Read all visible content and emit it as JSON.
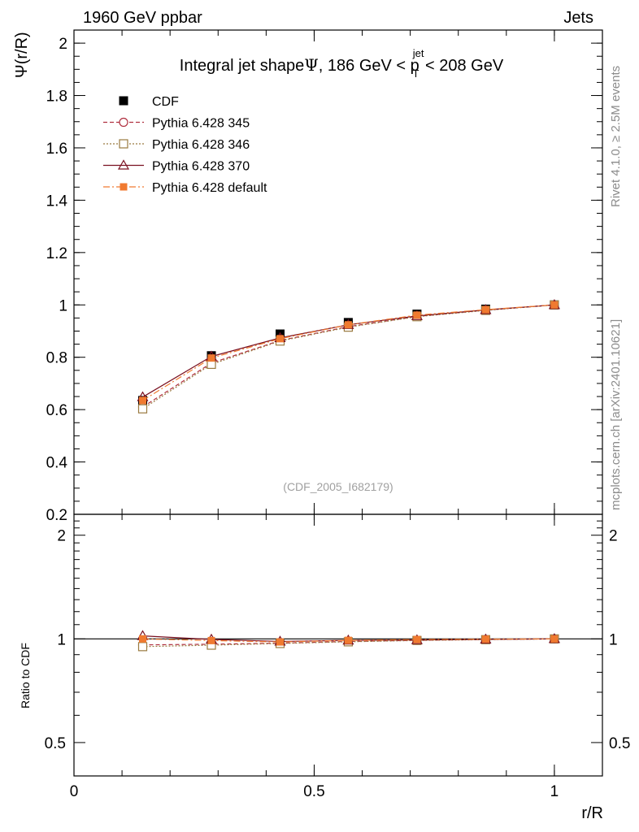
{
  "header": {
    "left": "1960 GeV ppbar",
    "right": "Jets"
  },
  "side_labels": {
    "rivet": "Rivet 4.1.0, ≥ 2.5M events",
    "mcplots": "mcplots.cern.ch [arXiv:2401.10621]"
  },
  "chart_data": {
    "type": "line",
    "title_parts": {
      "prefix": "Integral jet shape",
      "psi": "Ψ",
      "mid": ", 186 GeV < p",
      "sup": "jet",
      "sub": "T",
      "suffix": " < 208 GeV"
    },
    "analysis_tag": "(CDF_2005_I682179)",
    "xlabel": "r/R",
    "ylabel": "Ψ(r/R)",
    "ratio_ylabel": "Ratio to CDF",
    "xlim": [
      0,
      1.1
    ],
    "ylim": [
      0.2,
      2.05
    ],
    "ratio_ylim": [
      0.4,
      2.3
    ],
    "x_ticks": [
      {
        "v": 0,
        "label": "0"
      },
      {
        "v": 0.5,
        "label": "0.5"
      },
      {
        "v": 1,
        "label": "1"
      }
    ],
    "y_ticks": [
      {
        "v": 0.2,
        "label": "0.2"
      },
      {
        "v": 0.4,
        "label": "0.4"
      },
      {
        "v": 0.6,
        "label": "0.6"
      },
      {
        "v": 0.8,
        "label": "0.8"
      },
      {
        "v": 1.0,
        "label": "1"
      },
      {
        "v": 1.2,
        "label": "1.2"
      },
      {
        "v": 1.4,
        "label": "1.4"
      },
      {
        "v": 1.6,
        "label": "1.6"
      },
      {
        "v": 1.8,
        "label": "1.8"
      },
      {
        "v": 2.0,
        "label": "2"
      }
    ],
    "ratio_ticks": [
      {
        "v": 0.5,
        "label": "0.5"
      },
      {
        "v": 1,
        "label": "1"
      },
      {
        "v": 2,
        "label": "2"
      }
    ],
    "x": [
      0.143,
      0.286,
      0.429,
      0.571,
      0.714,
      0.857,
      1.0
    ],
    "data": {
      "name": "CDF",
      "values": [
        0.635,
        0.806,
        0.889,
        0.933,
        0.965,
        0.984,
        1.0
      ],
      "errors": [
        0.013,
        0.01,
        0.008,
        0.006,
        0.005,
        0.003,
        0.0
      ]
    },
    "series": [
      {
        "name": "Pythia 6.428 345",
        "color": "#b03040",
        "marker": "circle",
        "dash": "5,3",
        "values": [
          0.61,
          0.778,
          0.864,
          0.917,
          0.956,
          0.98,
          1.0
        ]
      },
      {
        "name": "Pythia 6.428 346",
        "color": "#9a7a40",
        "marker": "square-open",
        "dash": "2,2",
        "values": [
          0.603,
          0.773,
          0.862,
          0.915,
          0.955,
          0.979,
          1.0
        ]
      },
      {
        "name": "Pythia 6.428 370",
        "color": "#7a1020",
        "marker": "triangle",
        "dash": "",
        "values": [
          0.648,
          0.803,
          0.874,
          0.924,
          0.958,
          0.981,
          1.0
        ]
      },
      {
        "name": "Pythia 6.428 default",
        "color": "#f07a30",
        "marker": "square-filled",
        "dash": "8,3,2,3",
        "values": [
          0.635,
          0.797,
          0.871,
          0.924,
          0.961,
          0.982,
          1.0
        ]
      }
    ]
  }
}
